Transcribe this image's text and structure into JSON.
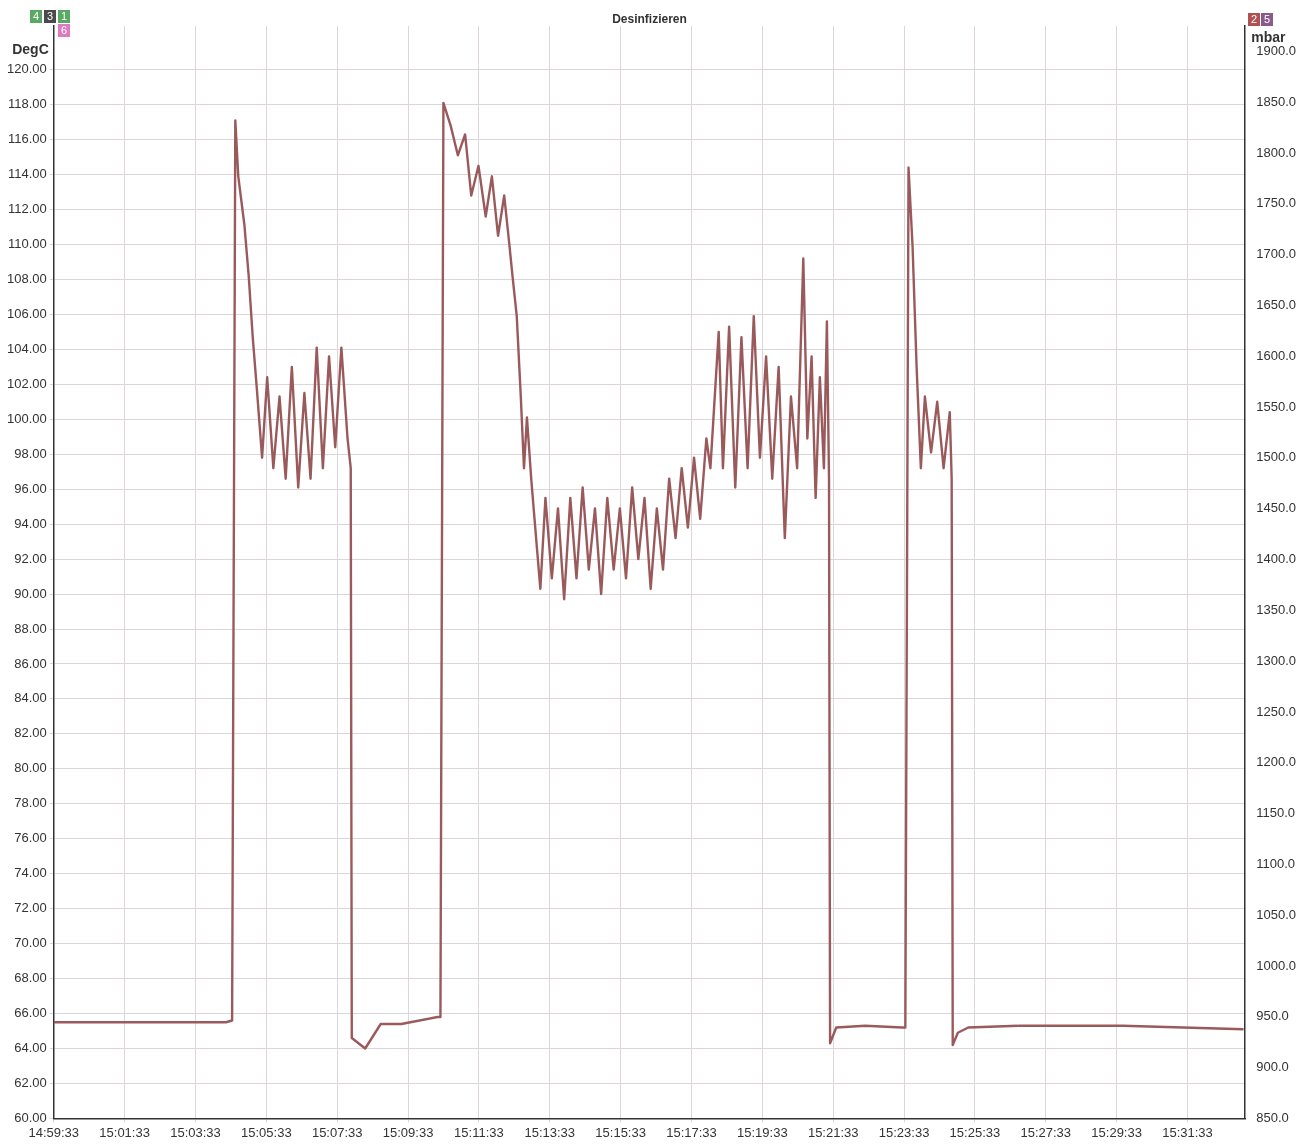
{
  "chart_data": {
    "type": "line",
    "title": "Desinfizieren",
    "ylabel": "DegC",
    "y2label": "mbar",
    "annotations": [
      "4",
      "3",
      "1",
      "6",
      "2",
      "5"
    ],
    "grid": true,
    "legend": false,
    "marker": "none",
    "line_style": "solid",
    "xlim": [
      14.9925,
      15.553
    ],
    "xticks": [
      {
        "value": 14.9925,
        "label": "14:59:33"
      },
      {
        "value": 15.025833,
        "label": "15:01:33"
      },
      {
        "value": 15.059167,
        "label": "15:03:33"
      },
      {
        "value": 15.0925,
        "label": "15:05:33"
      },
      {
        "value": 15.125833,
        "label": "15:07:33"
      },
      {
        "value": 15.159167,
        "label": "15:09:33"
      },
      {
        "value": 15.1925,
        "label": "15:11:33"
      },
      {
        "value": 15.225833,
        "label": "15:13:33"
      },
      {
        "value": 15.259167,
        "label": "15:15:33"
      },
      {
        "value": 15.2925,
        "label": "15:17:33"
      },
      {
        "value": 15.325833,
        "label": "15:19:33"
      },
      {
        "value": 15.359167,
        "label": "15:21:33"
      },
      {
        "value": 15.3925,
        "label": "15:23:33"
      },
      {
        "value": 15.425833,
        "label": "15:25:33"
      },
      {
        "value": 15.459167,
        "label": "15:27:33"
      },
      {
        "value": 15.4925,
        "label": "15:29:33"
      },
      {
        "value": 15.525833,
        "label": "15:31:33"
      }
    ],
    "ylim": [
      60,
      122.5
    ],
    "yticks": [
      {
        "value": 60,
        "label": "60.00"
      },
      {
        "value": 62,
        "label": "62.00"
      },
      {
        "value": 64,
        "label": "64.00"
      },
      {
        "value": 66,
        "label": "66.00"
      },
      {
        "value": 68,
        "label": "68.00"
      },
      {
        "value": 70,
        "label": "70.00"
      },
      {
        "value": 72,
        "label": "72.00"
      },
      {
        "value": 74,
        "label": "74.00"
      },
      {
        "value": 76,
        "label": "76.00"
      },
      {
        "value": 78,
        "label": "78.00"
      },
      {
        "value": 80,
        "label": "80.00"
      },
      {
        "value": 82,
        "label": "82.00"
      },
      {
        "value": 84,
        "label": "84.00"
      },
      {
        "value": 86,
        "label": "86.00"
      },
      {
        "value": 88,
        "label": "88.00"
      },
      {
        "value": 90,
        "label": "90.00"
      },
      {
        "value": 92,
        "label": "92.00"
      },
      {
        "value": 94,
        "label": "94.00"
      },
      {
        "value": 96,
        "label": "96.00"
      },
      {
        "value": 98,
        "label": "98.00"
      },
      {
        "value": 100,
        "label": "100.00"
      },
      {
        "value": 102,
        "label": "102.00"
      },
      {
        "value": 104,
        "label": "104.00"
      },
      {
        "value": 106,
        "label": "106.00"
      },
      {
        "value": 108,
        "label": "108.00"
      },
      {
        "value": 110,
        "label": "110.00"
      },
      {
        "value": 112,
        "label": "112.00"
      },
      {
        "value": 114,
        "label": "114.00"
      },
      {
        "value": 116,
        "label": "116.00"
      },
      {
        "value": 118,
        "label": "118.00"
      },
      {
        "value": 120,
        "label": "120.00"
      }
    ],
    "y2lim": [
      850,
      1925
    ],
    "y2ticks": [
      {
        "value": 850,
        "label": "850.0"
      },
      {
        "value": 900,
        "label": "900.0"
      },
      {
        "value": 950,
        "label": "950.0"
      },
      {
        "value": 1000,
        "label": "1000.0"
      },
      {
        "value": 1050,
        "label": "1050.0"
      },
      {
        "value": 1100,
        "label": "1100.0"
      },
      {
        "value": 1150,
        "label": "1150.0"
      },
      {
        "value": 1200,
        "label": "1200.0"
      },
      {
        "value": 1250,
        "label": "1250.0"
      },
      {
        "value": 1300,
        "label": "1300.0"
      },
      {
        "value": 1350,
        "label": "1350.0"
      },
      {
        "value": 1400,
        "label": "1400.0"
      },
      {
        "value": 1450,
        "label": "1450.0"
      },
      {
        "value": 1500,
        "label": "1500.0"
      },
      {
        "value": 1550,
        "label": "1550.0"
      },
      {
        "value": 1600,
        "label": "1600.0"
      },
      {
        "value": 1650,
        "label": "1650.0"
      },
      {
        "value": 1700,
        "label": "1700.0"
      },
      {
        "value": 1750,
        "label": "1750.0"
      },
      {
        "value": 1800,
        "label": "1800.0"
      },
      {
        "value": 1850,
        "label": "1850.0"
      },
      {
        "value": 1900,
        "label": "1900.0"
      }
    ],
    "series": [
      {
        "color": "#9a5a5c",
        "x": [
          14.9925,
          15.0735,
          15.0764,
          15.0779,
          15.0793,
          15.0822,
          15.0842,
          15.0861,
          15.088,
          15.0905,
          15.0929,
          15.0958,
          15.0987,
          15.1016,
          15.1045,
          15.1075,
          15.1104,
          15.1133,
          15.1162,
          15.1191,
          15.122,
          15.1249,
          15.1278,
          15.1307,
          15.1322,
          15.1327,
          15.139,
          15.1463,
          15.156,
          15.173,
          15.1744,
          15.1758,
          15.1792,
          15.1826,
          15.186,
          15.1889,
          15.1923,
          15.1957,
          15.1986,
          15.2015,
          15.2044,
          15.2069,
          15.2083,
          15.2103,
          15.2122,
          15.2137,
          15.2151,
          15.2171,
          15.219,
          15.2214,
          15.2238,
          15.2268,
          15.2297,
          15.2326,
          15.2355,
          15.2384,
          15.2413,
          15.2442,
          15.2471,
          15.25,
          15.2529,
          15.2559,
          15.2588,
          15.2617,
          15.2646,
          15.2675,
          15.2704,
          15.2733,
          15.2762,
          15.2791,
          15.282,
          15.285,
          15.2879,
          15.2908,
          15.2937,
          15.2966,
          15.2995,
          15.3014,
          15.3053,
          15.3073,
          15.3102,
          15.3131,
          15.316,
          15.3189,
          15.3218,
          15.3247,
          15.3276,
          15.3305,
          15.3335,
          15.3364,
          15.3393,
          15.3422,
          15.3451,
          15.347,
          15.349,
          15.3509,
          15.3529,
          15.3548,
          15.3562,
          15.3572,
          15.3577,
          15.3606,
          15.3742,
          15.3917,
          15.3931,
          15.3946,
          15.3965,
          15.3984,
          15.4004,
          15.4023,
          15.4052,
          15.4081,
          15.4111,
          15.414,
          15.4149,
          15.4154,
          15.4178,
          15.4227,
          15.4469,
          15.4954,
          15.5522
        ],
        "values": [
          65.5,
          65.5,
          65.6,
          117.1,
          113.9,
          111.1,
          108.2,
          104.7,
          101.8,
          97.8,
          102.4,
          97.2,
          101.3,
          96.6,
          103.0,
          96.1,
          101.5,
          96.6,
          104.1,
          97.2,
          103.6,
          98.4,
          104.1,
          98.9,
          97.2,
          64.6,
          64.0,
          65.4,
          65.4,
          65.8,
          65.8,
          118.1,
          116.8,
          115.1,
          116.3,
          112.8,
          114.5,
          111.6,
          113.9,
          110.5,
          112.8,
          109.9,
          108.2,
          105.9,
          101.3,
          97.2,
          100.1,
          96.6,
          93.8,
          90.3,
          95.5,
          90.9,
          94.9,
          89.7,
          95.5,
          90.9,
          96.1,
          91.4,
          94.9,
          90.0,
          95.5,
          91.4,
          94.9,
          90.9,
          96.1,
          92.0,
          95.5,
          90.3,
          94.9,
          91.4,
          96.6,
          93.2,
          97.2,
          93.8,
          97.8,
          94.3,
          98.9,
          97.2,
          105.0,
          97.2,
          105.3,
          96.1,
          104.7,
          97.2,
          105.9,
          97.8,
          103.6,
          96.6,
          103.0,
          93.2,
          101.3,
          97.2,
          109.2,
          98.9,
          103.6,
          95.5,
          102.4,
          97.2,
          105.6,
          96.6,
          64.3,
          65.2,
          65.3,
          65.2,
          65.2,
          114.4,
          109.9,
          103.0,
          97.2,
          101.3,
          98.1,
          101.0,
          97.2,
          100.4,
          96.6,
          64.2,
          64.9,
          65.2,
          65.3,
          65.3,
          65.1
        ]
      }
    ]
  }
}
